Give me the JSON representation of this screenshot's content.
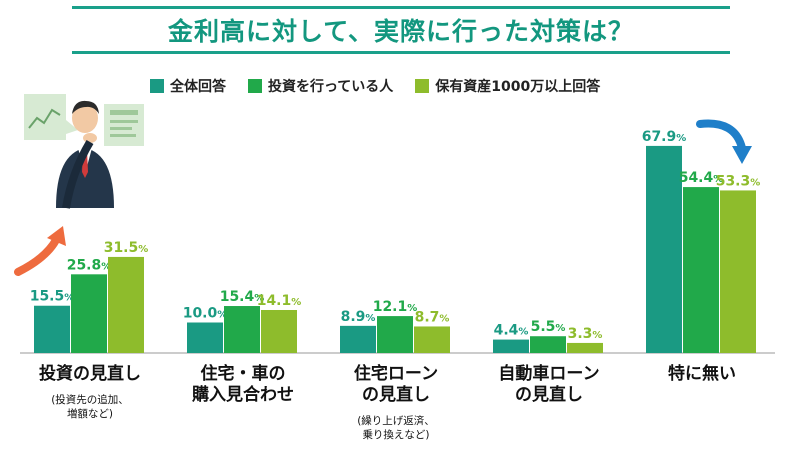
{
  "title": "金利高に対して、実際に行った対策は？",
  "colors": {
    "series1": "#1a9a83",
    "series2": "#21a94a",
    "series3": "#8ebc2c",
    "title": "#13977f",
    "arrow_up": "#ee6b3e",
    "arrow_down": "#1f7fc9"
  },
  "chart_data": {
    "type": "bar",
    "title": "金利高に対して、実際に行った対策は？",
    "xlabel": "",
    "ylabel": "",
    "ylim": [
      0,
      70
    ],
    "unit": "%",
    "legend_position": "top",
    "grid": false,
    "categories": [
      "投資の見直し",
      "住宅・車の\n購入見合わせ",
      "住宅ローン\nの見直し",
      "自動車ローン\nの見直し",
      "特に無い"
    ],
    "category_notes": [
      "(投資先の追加、\n増額など)",
      "",
      "(繰り上げ返済、\n乗り換えなど)",
      "",
      ""
    ],
    "series": [
      {
        "name": "全体回答",
        "values": [
          15.5,
          10.0,
          8.9,
          4.4,
          67.9
        ]
      },
      {
        "name": "投資を行っている人",
        "values": [
          25.8,
          15.4,
          12.1,
          5.5,
          54.4
        ]
      },
      {
        "name": "保有資産1000万以上回答",
        "values": [
          31.5,
          14.1,
          8.7,
          3.3,
          53.3
        ]
      }
    ]
  },
  "icons": [
    "illustration-person-icon",
    "arrow-up-icon",
    "arrow-down-icon"
  ]
}
